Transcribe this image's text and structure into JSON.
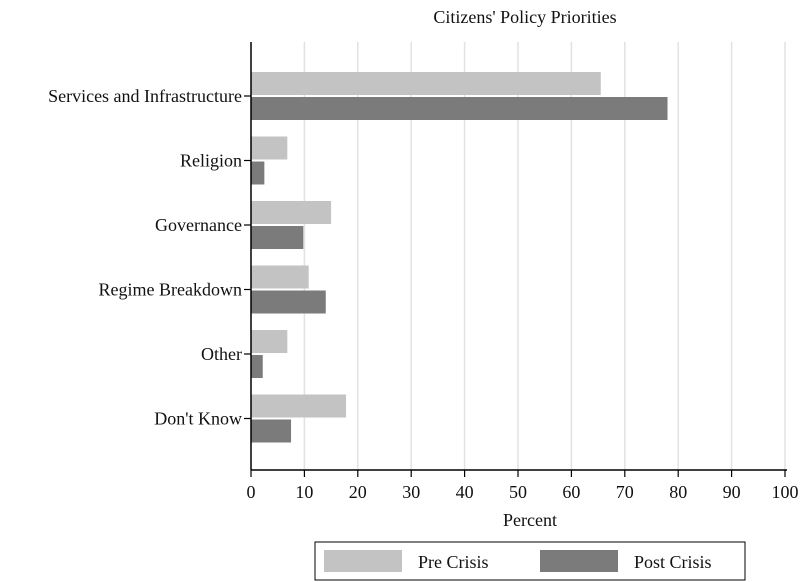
{
  "chart_data": {
    "type": "bar",
    "orientation": "horizontal",
    "title": "Citizens' Policy Priorities",
    "xlabel": "Percent",
    "ylabel": "",
    "categories": [
      "Services and Infrastructure",
      "Religion",
      "Governance",
      "Regime Breakdown",
      "Other",
      "Don't Know"
    ],
    "series": [
      {
        "name": "Pre Crisis",
        "color": "#c3c3c3",
        "values": [
          65.5,
          6.8,
          15.0,
          10.8,
          6.8,
          17.8
        ]
      },
      {
        "name": "Post Crisis",
        "color": "#7b7b7b",
        "values": [
          78.0,
          2.5,
          9.8,
          14.0,
          2.2,
          7.5
        ]
      }
    ],
    "xlim": [
      0,
      100
    ],
    "xticks": [
      "0",
      "10",
      "20",
      "30",
      "40",
      "50",
      "60",
      "70",
      "80",
      "90",
      "100"
    ],
    "grid": true,
    "legend_position": "bottom"
  }
}
